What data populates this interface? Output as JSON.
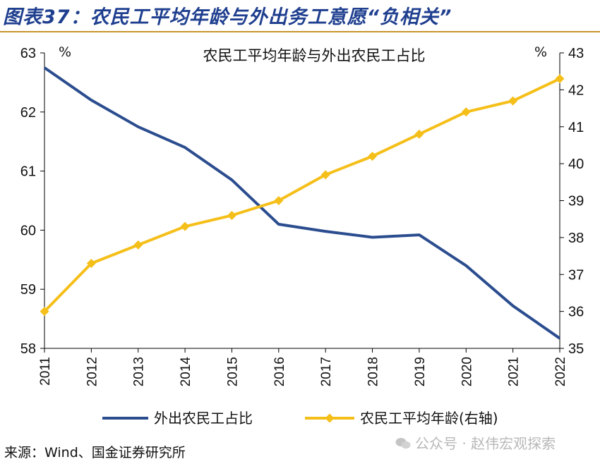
{
  "figure_title": "图表37：农民工平均年龄与外出务工意愿“负相关”",
  "source": "来源：Wind、国金证券研究所",
  "watermark": "公众号 · 赵伟宏观探索",
  "watermark_icon": "wechat-icon",
  "chart_data": {
    "type": "line",
    "title": "农民工平均年龄与外出农民工占比",
    "categories": [
      "2011",
      "2012",
      "2013",
      "2014",
      "2015",
      "2016",
      "2017",
      "2018",
      "2019",
      "2020",
      "2021",
      "2022"
    ],
    "y_left": {
      "unit": "%",
      "range": [
        58,
        63
      ],
      "ticks": [
        "58",
        "59",
        "60",
        "61",
        "62",
        "63"
      ]
    },
    "y_right": {
      "unit": "%",
      "range": [
        35,
        43
      ],
      "ticks": [
        "35",
        "36",
        "37",
        "38",
        "39",
        "40",
        "41",
        "42",
        "43"
      ]
    },
    "series": [
      {
        "name": "外出农民工占比",
        "axis": "left",
        "color": "#2b4d8f",
        "marker": "none",
        "values": [
          62.75,
          62.2,
          61.75,
          61.4,
          60.85,
          60.1,
          59.98,
          59.88,
          59.92,
          59.4,
          58.72,
          58.17
        ]
      },
      {
        "name": "农民工平均年龄(右轴)",
        "axis": "right",
        "color": "#f5bf1a",
        "marker": "diamond",
        "values": [
          36.0,
          37.3,
          37.8,
          38.3,
          38.6,
          39.0,
          39.7,
          40.2,
          40.8,
          41.4,
          41.7,
          42.3
        ]
      }
    ],
    "legend_position": "bottom",
    "grid": false
  }
}
